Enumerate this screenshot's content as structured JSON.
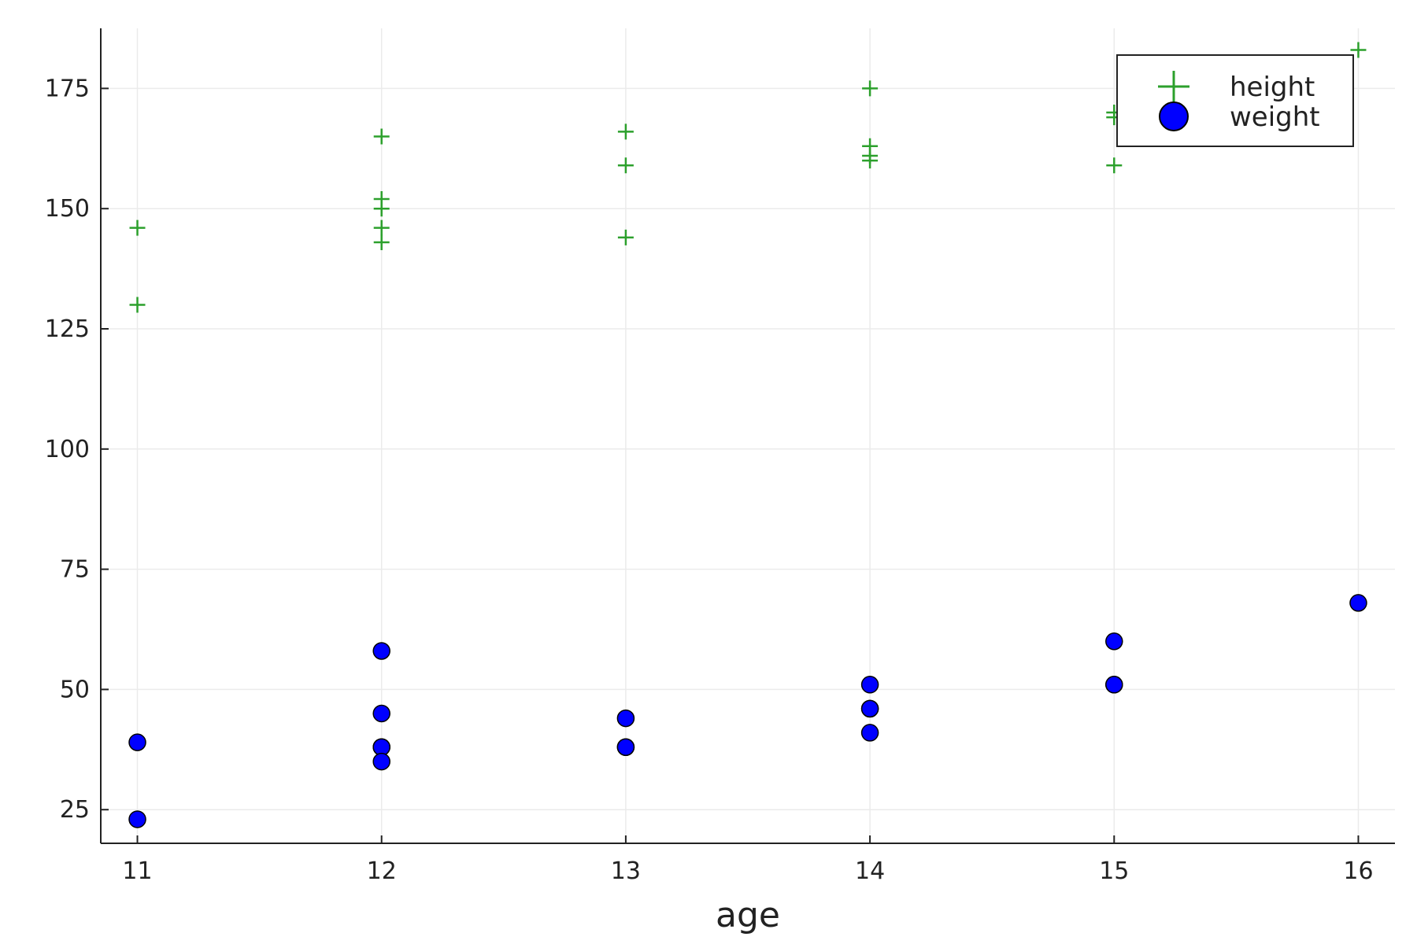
{
  "chart_data": {
    "type": "scatter",
    "title": "",
    "xlabel": "age",
    "ylabel": "",
    "xlim": [
      10.85,
      16.15
    ],
    "ylim": [
      18,
      187.5
    ],
    "x_ticks": [
      11,
      12,
      13,
      14,
      15,
      16
    ],
    "y_ticks": [
      25,
      50,
      75,
      100,
      125,
      150,
      175
    ],
    "grid": true,
    "legend_position": "top-right",
    "series": [
      {
        "name": "height",
        "marker": "cross",
        "color": "#2ca02c",
        "points": [
          {
            "x": 11,
            "y": 146
          },
          {
            "x": 11,
            "y": 130
          },
          {
            "x": 12,
            "y": 165
          },
          {
            "x": 12,
            "y": 152
          },
          {
            "x": 12,
            "y": 150
          },
          {
            "x": 12,
            "y": 146
          },
          {
            "x": 12,
            "y": 143
          },
          {
            "x": 13,
            "y": 166
          },
          {
            "x": 13,
            "y": 159
          },
          {
            "x": 13,
            "y": 144
          },
          {
            "x": 14,
            "y": 175
          },
          {
            "x": 14,
            "y": 163
          },
          {
            "x": 14,
            "y": 161
          },
          {
            "x": 14,
            "y": 160
          },
          {
            "x": 15,
            "y": 170
          },
          {
            "x": 15,
            "y": 169
          },
          {
            "x": 15,
            "y": 159
          },
          {
            "x": 16,
            "y": 183
          }
        ]
      },
      {
        "name": "weight",
        "marker": "circle",
        "color": "#0000ff",
        "points": [
          {
            "x": 11,
            "y": 39
          },
          {
            "x": 11,
            "y": 23
          },
          {
            "x": 12,
            "y": 58
          },
          {
            "x": 12,
            "y": 45
          },
          {
            "x": 12,
            "y": 38
          },
          {
            "x": 12,
            "y": 38
          },
          {
            "x": 12,
            "y": 35
          },
          {
            "x": 13,
            "y": 44
          },
          {
            "x": 13,
            "y": 38
          },
          {
            "x": 13,
            "y": 38
          },
          {
            "x": 14,
            "y": 51
          },
          {
            "x": 14,
            "y": 46
          },
          {
            "x": 14,
            "y": 46
          },
          {
            "x": 14,
            "y": 41
          },
          {
            "x": 15,
            "y": 60
          },
          {
            "x": 15,
            "y": 51
          },
          {
            "x": 15,
            "y": 51
          },
          {
            "x": 16,
            "y": 68
          }
        ]
      }
    ]
  }
}
